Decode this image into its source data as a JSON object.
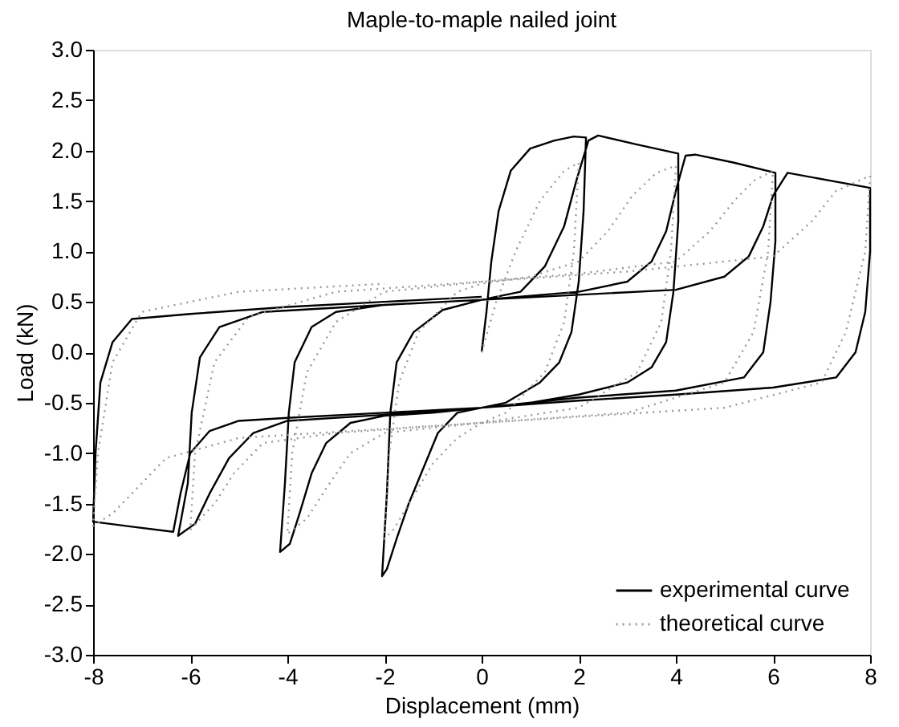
{
  "chart_data": {
    "type": "line",
    "title": "Maple-to-maple nailed joint",
    "xlabel": "Displacement (mm)",
    "ylabel": "Load (kN)",
    "xlim": [
      -8,
      8
    ],
    "ylim": [
      -3,
      3
    ],
    "xticks": [
      -8,
      -6,
      -4,
      -2,
      0,
      2,
      4,
      6,
      8
    ],
    "yticks": [
      {
        "value": -3,
        "label": "-3.0"
      },
      {
        "value": -2.5,
        "label": "-2.5"
      },
      {
        "value": -2,
        "label": "-2.0"
      },
      {
        "value": -1.5,
        "label": "-1.5"
      },
      {
        "value": -1,
        "label": "-1.0"
      },
      {
        "value": -0.5,
        "label": "-0.5"
      },
      {
        "value": 0,
        "label": "0.0"
      },
      {
        "value": 0.5,
        "label": "0.5"
      },
      {
        "value": 1,
        "label": "1.0"
      },
      {
        "value": 1.5,
        "label": "1.5"
      },
      {
        "value": 2,
        "label": "2.0"
      },
      {
        "value": 2.5,
        "label": "2.5"
      },
      {
        "value": 3,
        "label": "3.0"
      }
    ],
    "grid": false,
    "legend": "bottom right",
    "series": [
      {
        "name": "experimental curve",
        "color": "#000000",
        "line_style": "solid",
        "x": [
          0,
          0.1,
          0.2,
          0.35,
          0.6,
          1.0,
          1.5,
          1.9,
          2.15,
          2.1,
          2.0,
          1.85,
          1.6,
          1.2,
          0.5,
          0,
          -0.5,
          -0.9,
          -1.2,
          -1.5,
          -1.75,
          -1.95,
          -2.05,
          -1.95,
          -1.88,
          -1.75,
          -1.4,
          -0.8,
          0,
          0.8,
          1.3,
          1.7,
          1.95,
          2.2,
          2.4,
          3.2,
          4.05,
          4.05,
          3.95,
          3.8,
          3.5,
          3.0,
          2,
          1,
          0,
          -1,
          -2,
          -2.7,
          -3.2,
          -3.5,
          -3.75,
          -3.95,
          -4.15,
          -4.05,
          -3.97,
          -3.85,
          -3.5,
          -3,
          -2,
          0,
          2,
          3,
          3.5,
          3.8,
          4.0,
          4.2,
          4.4,
          5.2,
          6.05,
          6.05,
          5.95,
          5.8,
          5.4,
          4,
          2,
          0,
          -2,
          -4,
          -4.7,
          -5.2,
          -5.6,
          -5.9,
          -6.25,
          -6.05,
          -5.97,
          -5.8,
          -5.4,
          -4.5,
          -2,
          0,
          2,
          4,
          5,
          5.5,
          5.8,
          6.0,
          6.3,
          7.2,
          8.0,
          8.0,
          7.9,
          7.7,
          7.3,
          6,
          4,
          2,
          0,
          -2,
          -4,
          -5,
          -5.6,
          -6.0,
          -6.2,
          -6.35,
          -7.2,
          -8.0,
          -7.95,
          -7.85,
          -7.6,
          -7.2,
          -6,
          -4,
          -2,
          0
        ],
        "values": [
          0,
          0.4,
          0.9,
          1.4,
          1.8,
          2.02,
          2.1,
          2.14,
          2.13,
          1.4,
          0.7,
          0.2,
          -0.1,
          -0.3,
          -0.5,
          -0.55,
          -0.6,
          -0.8,
          -1.15,
          -1.5,
          -1.85,
          -2.15,
          -2.22,
          -1.4,
          -0.6,
          -0.1,
          0.2,
          0.42,
          0.52,
          0.6,
          0.85,
          1.25,
          1.7,
          2.1,
          2.15,
          2.06,
          1.97,
          1.3,
          0.6,
          0.1,
          -0.15,
          -0.3,
          -0.42,
          -0.5,
          -0.55,
          -0.6,
          -0.63,
          -0.7,
          -0.9,
          -1.2,
          -1.6,
          -1.9,
          -1.98,
          -1.3,
          -0.6,
          -0.1,
          0.25,
          0.4,
          0.47,
          0.52,
          0.6,
          0.7,
          0.9,
          1.2,
          1.6,
          1.95,
          1.96,
          1.88,
          1.78,
          1.1,
          0.5,
          0.0,
          -0.25,
          -0.38,
          -0.45,
          -0.55,
          -0.62,
          -0.68,
          -0.8,
          -1.05,
          -1.4,
          -1.7,
          -1.82,
          -1.3,
          -0.6,
          -0.05,
          0.25,
          0.4,
          0.47,
          0.52,
          0.57,
          0.62,
          0.75,
          0.95,
          1.25,
          1.55,
          1.78,
          1.7,
          1.63,
          1.0,
          0.4,
          0.0,
          -0.25,
          -0.35,
          -0.42,
          -0.48,
          -0.55,
          -0.6,
          -0.65,
          -0.68,
          -0.78,
          -1.0,
          -1.4,
          -1.78,
          -1.73,
          -1.68,
          -1.0,
          -0.3,
          0.1,
          0.33,
          0.38,
          0.45,
          0.5,
          0.55
        ]
      },
      {
        "name": "theoretical curve",
        "color": "#999999",
        "line_style": "dotted",
        "x": [
          0,
          0.3,
          0.7,
          1.2,
          1.7,
          2.0,
          1.9,
          1.7,
          1.3,
          0.5,
          0,
          -0.5,
          -1,
          -1.5,
          -1.8,
          -2,
          -1.9,
          -1.7,
          -1.3,
          -0.5,
          0,
          1,
          2,
          2.6,
          3.1,
          3.6,
          4,
          3.9,
          3.7,
          3.2,
          2,
          0,
          -2,
          -2.7,
          -3.2,
          -3.6,
          -4,
          -3.9,
          -3.6,
          -3,
          -2,
          0,
          2,
          4,
          4.7,
          5.2,
          5.6,
          6,
          5.9,
          5.6,
          5,
          3,
          0,
          -3,
          -4.5,
          -5.1,
          -5.5,
          -6,
          -5.9,
          -5.5,
          -4.8,
          -3,
          0,
          3,
          6,
          6.8,
          7.3,
          8,
          7.9,
          7.5,
          7,
          5,
          0,
          -5,
          -6.5,
          -7.1,
          -7.6,
          -8,
          -7.9,
          -7.6,
          -7,
          -5,
          -2
        ],
        "values": [
          0,
          0.5,
          1.0,
          1.5,
          1.8,
          1.88,
          1.0,
          0.3,
          -0.2,
          -0.6,
          -0.7,
          -0.85,
          -1.1,
          -1.5,
          -1.75,
          -1.85,
          -1.0,
          -0.3,
          0.2,
          0.6,
          0.68,
          0.75,
          0.9,
          1.2,
          1.55,
          1.78,
          1.85,
          1.0,
          0.3,
          -0.2,
          -0.55,
          -0.7,
          -0.8,
          -1.0,
          -1.35,
          -1.65,
          -1.8,
          -1.0,
          -0.2,
          0.3,
          0.6,
          0.7,
          0.78,
          0.9,
          1.2,
          1.5,
          1.7,
          1.8,
          1.0,
          0.2,
          -0.3,
          -0.6,
          -0.7,
          -0.8,
          -0.9,
          -1.2,
          -1.5,
          -1.76,
          -1.0,
          -0.1,
          0.35,
          0.6,
          0.7,
          0.8,
          0.95,
          1.3,
          1.6,
          1.75,
          1.0,
          0.2,
          -0.3,
          -0.55,
          -0.7,
          -0.85,
          -1.05,
          -1.35,
          -1.6,
          -1.72,
          -1.0,
          -0.1,
          0.4,
          0.6,
          0.68
        ]
      }
    ]
  }
}
